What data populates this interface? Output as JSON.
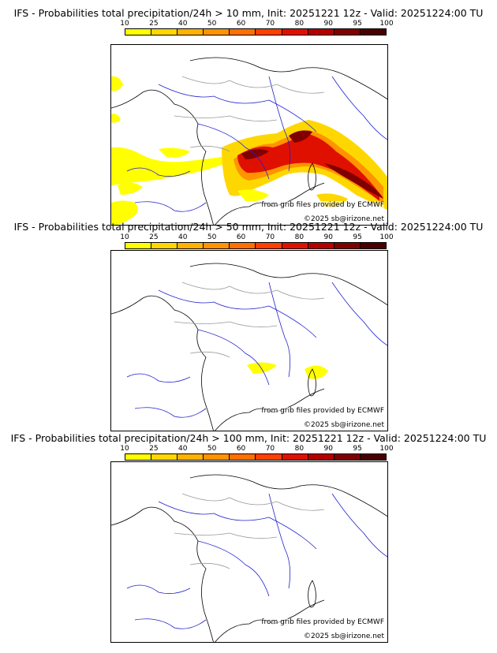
{
  "colorbar": {
    "levels": [
      "10",
      "25",
      "40",
      "50",
      "60",
      "70",
      "80",
      "90",
      "95",
      "100"
    ],
    "colors": [
      "#ffff00",
      "#ffd700",
      "#ffb300",
      "#ff9400",
      "#ff7000",
      "#ff4000",
      "#e01000",
      "#b40000",
      "#800000",
      "#4a0000"
    ]
  },
  "panels": [
    {
      "title": "IFS - Probabilities total precipitation/24h > 10 mm, Init: 20251221 12z - Valid: 20251224:00 TU",
      "credit_source": "from grib files provided by ECMWF",
      "credit_copyright": "©2025 sb@irizone.net"
    },
    {
      "title": "IFS - Probabilities total precipitation/24h > 50 mm, Init: 20251221 12z - Valid: 20251224:00 TU",
      "credit_source": "from grib files provided by ECMWF",
      "credit_copyright": "©2025 sb@irizone.net"
    },
    {
      "title": "IFS - Probabilities total precipitation/24h > 100 mm, Init: 20251221 12z - Valid: 20251224:00 TU",
      "credit_source": "from grib files provided by ECMWF",
      "credit_copyright": "©2025 sb@irizone.net"
    }
  ]
}
